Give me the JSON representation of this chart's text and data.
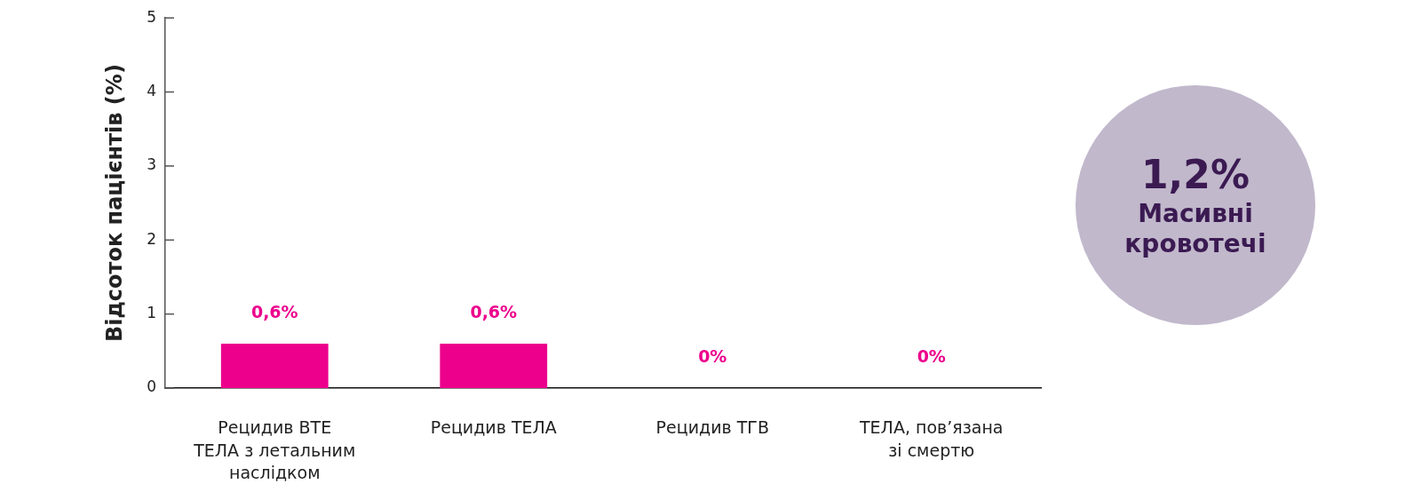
{
  "chart_data": {
    "type": "bar",
    "ylabel": "Відсоток пацієнтів (%)",
    "categories": [
      "Рецидив ВТЕ\nТЕЛА з летальним\nнаслідком",
      "Рецидив ТЕЛА",
      "Рецидив ТГВ",
      "ТЕЛА, пов’язана\nзі смертю"
    ],
    "values": [
      0.6,
      0.6,
      0,
      0
    ],
    "color": "#ec008c",
    "value_labels": [
      "0,6%",
      "0,6%",
      "0%",
      "0%"
    ],
    "ylim": [
      0,
      5
    ],
    "yticks": [
      0,
      1,
      2,
      3,
      4,
      5
    ],
    "annotations": [
      "1,2%",
      "Масивні кровотечі"
    ]
  }
}
